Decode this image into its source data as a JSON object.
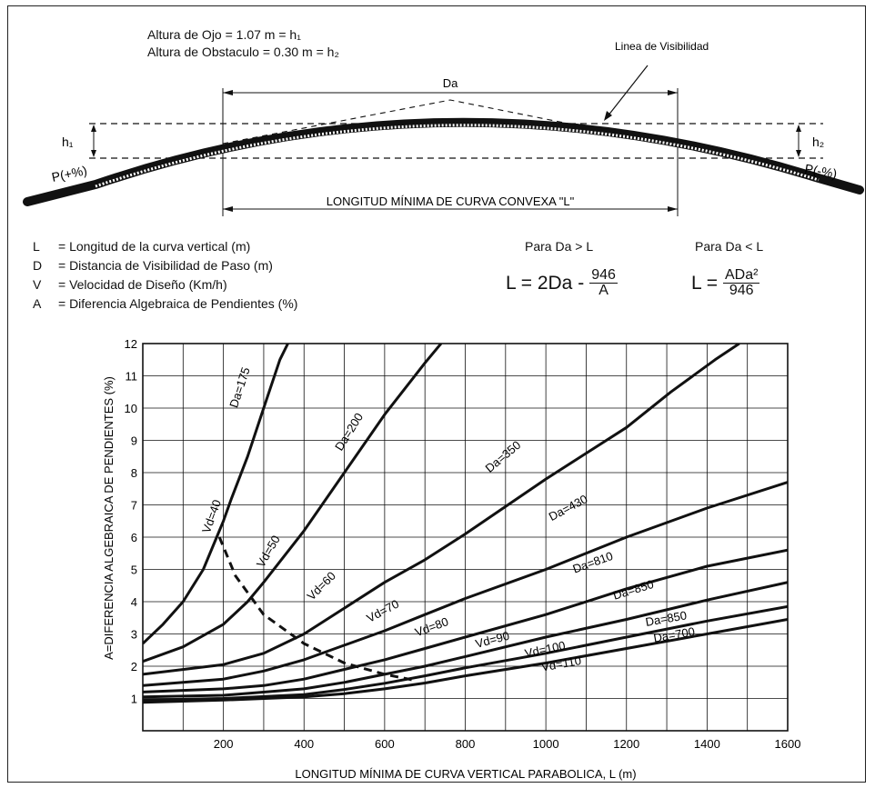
{
  "header": {
    "eye_line": "Altura de Ojo          = 1.07 m = h₁",
    "obstacle_line": "Altura de Obstaculo = 0.30 m = h₂"
  },
  "diagram": {
    "sight_line_label": "Linea de Visibilidad",
    "da_label": "Da",
    "h1_label": "h₁",
    "h2_label": "h₂",
    "p_left": "P(+%)",
    "p_right": "P(-%)",
    "curve_length_label": "LONGITUD MÍNIMA DE CURVA CONVEXA \"L\""
  },
  "definitions": [
    {
      "sym": "L",
      "text": "= Longitud de la curva vertical (m)"
    },
    {
      "sym": "D",
      "text": "= Distancia de Visibilidad de Paso (m)"
    },
    {
      "sym": "V",
      "text": "= Velocidad de Diseño (Km/h)"
    },
    {
      "sym": "A",
      "text": "= Diferencia Algebraica de Pendientes (%)"
    }
  ],
  "formulas": {
    "case1_title": "Para Da > L",
    "case1_left": "L = 2Da -",
    "case1_num": "946",
    "case1_den": "A",
    "case2_title": "Para Da < L",
    "case2_left": "L =",
    "case2_num": "ADa²",
    "case2_den": "946"
  },
  "chart_data": {
    "type": "line",
    "xlabel": "LONGITUD MÍNIMA DE CURVA VERTICAL PARABOLICA, L (m)",
    "ylabel": "A=DIFERENCIA ALGEBRAICA DE PENDIENTES (%)",
    "xlim": [
      0,
      1600
    ],
    "ylim": [
      0,
      12
    ],
    "x_ticks": [
      200,
      400,
      600,
      800,
      1000,
      1200,
      1400,
      1600
    ],
    "y_ticks": [
      1,
      2,
      3,
      4,
      5,
      6,
      7,
      8,
      9,
      10,
      11,
      12
    ],
    "grid": true,
    "series": [
      {
        "name": "Da=175",
        "points": [
          [
            0,
            2.7
          ],
          [
            50,
            3.3
          ],
          [
            100,
            4
          ],
          [
            150,
            5
          ],
          [
            180,
            5.9
          ],
          [
            200,
            6.5
          ],
          [
            220,
            7.2
          ],
          [
            260,
            8.5
          ],
          [
            300,
            10
          ],
          [
            340,
            11.5
          ],
          [
            360,
            12
          ]
        ]
      },
      {
        "name": "Da=200",
        "points": [
          [
            0,
            2.15
          ],
          [
            100,
            2.6
          ],
          [
            200,
            3.3
          ],
          [
            260,
            4
          ],
          [
            300,
            4.6
          ],
          [
            400,
            6.2
          ],
          [
            500,
            8
          ],
          [
            600,
            9.8
          ],
          [
            700,
            11.4
          ],
          [
            740,
            12
          ]
        ]
      },
      {
        "name": "Da=350",
        "points": [
          [
            0,
            1.75
          ],
          [
            200,
            2.05
          ],
          [
            300,
            2.4
          ],
          [
            400,
            3
          ],
          [
            500,
            3.8
          ],
          [
            600,
            4.6
          ],
          [
            700,
            5.3
          ],
          [
            800,
            6.1
          ],
          [
            1000,
            7.8
          ],
          [
            1200,
            9.4
          ],
          [
            1310,
            10.5
          ],
          [
            1420,
            11.5
          ],
          [
            1480,
            12
          ]
        ]
      },
      {
        "name": "Da=430",
        "points": [
          [
            0,
            1.4
          ],
          [
            200,
            1.6
          ],
          [
            300,
            1.85
          ],
          [
            400,
            2.2
          ],
          [
            500,
            2.65
          ],
          [
            600,
            3.1
          ],
          [
            700,
            3.6
          ],
          [
            800,
            4.1
          ],
          [
            1000,
            5
          ],
          [
            1200,
            6
          ],
          [
            1400,
            6.9
          ],
          [
            1600,
            7.7
          ]
        ]
      },
      {
        "name": "Da=810",
        "points": [
          [
            0,
            1.2
          ],
          [
            200,
            1.3
          ],
          [
            300,
            1.4
          ],
          [
            400,
            1.6
          ],
          [
            500,
            1.9
          ],
          [
            600,
            2.2
          ],
          [
            700,
            2.55
          ],
          [
            800,
            2.9
          ],
          [
            1000,
            3.6
          ],
          [
            1200,
            4.4
          ],
          [
            1400,
            5.1
          ],
          [
            1600,
            5.6
          ]
        ]
      },
      {
        "name": "Da=850",
        "points": [
          [
            0,
            1.05
          ],
          [
            200,
            1.1
          ],
          [
            400,
            1.3
          ],
          [
            500,
            1.5
          ],
          [
            600,
            1.75
          ],
          [
            700,
            2
          ],
          [
            800,
            2.3
          ],
          [
            1000,
            2.9
          ],
          [
            1200,
            3.45
          ],
          [
            1400,
            4.05
          ],
          [
            1600,
            4.6
          ]
        ]
      },
      {
        "name": "Da=850",
        "points": [
          [
            0,
            0.95
          ],
          [
            200,
            1.0
          ],
          [
            400,
            1.12
          ],
          [
            500,
            1.28
          ],
          [
            600,
            1.47
          ],
          [
            700,
            1.7
          ],
          [
            800,
            1.95
          ],
          [
            1000,
            2.4
          ],
          [
            1200,
            2.9
          ],
          [
            1400,
            3.4
          ],
          [
            1600,
            3.85
          ]
        ]
      },
      {
        "name": "Da=700",
        "points": [
          [
            0,
            0.88
          ],
          [
            200,
            0.95
          ],
          [
            400,
            1.05
          ],
          [
            500,
            1.15
          ],
          [
            600,
            1.3
          ],
          [
            700,
            1.48
          ],
          [
            800,
            1.7
          ],
          [
            1000,
            2.1
          ],
          [
            1200,
            2.55
          ],
          [
            1400,
            3
          ],
          [
            1600,
            3.45
          ]
        ]
      },
      {
        "name": "",
        "dashed": true,
        "points": [
          [
            190,
            6
          ],
          [
            230,
            4.8
          ],
          [
            300,
            3.6
          ],
          [
            400,
            2.7
          ],
          [
            500,
            2.1
          ],
          [
            600,
            1.75
          ],
          [
            680,
            1.55
          ]
        ]
      }
    ],
    "annotations": [
      {
        "text": "Da=175",
        "x": 250,
        "y": 10.6,
        "angle": -72
      },
      {
        "text": "Da=200",
        "x": 520,
        "y": 9.2,
        "angle": -58
      },
      {
        "text": "Da=350",
        "x": 900,
        "y": 8.4,
        "angle": -40
      },
      {
        "text": "Da=430",
        "x": 1060,
        "y": 6.8,
        "angle": -28
      },
      {
        "text": "Da=810",
        "x": 1120,
        "y": 5.1,
        "angle": -20
      },
      {
        "text": "Da=850",
        "x": 1220,
        "y": 4.25,
        "angle": -17
      },
      {
        "text": "Da=850",
        "x": 1300,
        "y": 3.35,
        "angle": -10
      },
      {
        "text": "Da=700",
        "x": 1320,
        "y": 2.85,
        "angle": -10
      },
      {
        "text": "Vd=40",
        "x": 180,
        "y": 6.6,
        "angle": -70
      },
      {
        "text": "Vd=50",
        "x": 320,
        "y": 5.5,
        "angle": -60
      },
      {
        "text": "Vd=60",
        "x": 450,
        "y": 4.4,
        "angle": -45
      },
      {
        "text": "Vd=70",
        "x": 600,
        "y": 3.6,
        "angle": -28
      },
      {
        "text": "Vd=80",
        "x": 720,
        "y": 3.1,
        "angle": -20
      },
      {
        "text": "Vd=90",
        "x": 870,
        "y": 2.7,
        "angle": -15
      },
      {
        "text": "Vd=100",
        "x": 1000,
        "y": 2.4,
        "angle": -12
      },
      {
        "text": "Vd=110",
        "x": 1040,
        "y": 1.95,
        "angle": -10
      }
    ]
  }
}
